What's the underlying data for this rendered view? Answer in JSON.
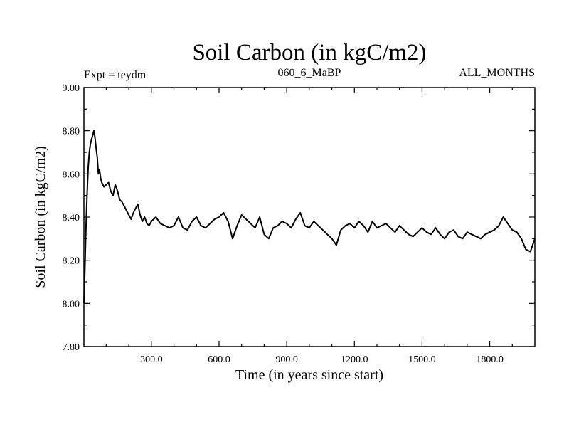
{
  "chart_data": {
    "type": "line",
    "title": "Soil Carbon (in kgC/m2)",
    "subtitle_left": "Expt = teydm",
    "subtitle_center": "060_6_MaBP",
    "subtitle_right": "ALL_MONTHS",
    "xlabel": "Time (in years since start)",
    "ylabel": "Soil Carbon (in kgC/m2)",
    "xlim": [
      1,
      2000
    ],
    "ylim": [
      7.8,
      9.0
    ],
    "x_ticks": [
      300,
      600,
      900,
      1200,
      1500,
      1800
    ],
    "x_tick_labels": [
      "300.0",
      "600.0",
      "900.0",
      "1200.0",
      "1500.0",
      "1800.0"
    ],
    "y_ticks": [
      7.8,
      8.0,
      8.2,
      8.4,
      8.6,
      8.8,
      9.0
    ],
    "y_tick_labels": [
      "7.80",
      "8.00",
      "8.20",
      "8.40",
      "8.60",
      "8.80",
      "9.00"
    ],
    "grid": false,
    "series": [
      {
        "name": "Soil Carbon",
        "color": "#000000",
        "x": [
          1,
          5,
          10,
          15,
          20,
          25,
          30,
          35,
          40,
          45,
          50,
          55,
          60,
          65,
          70,
          75,
          80,
          90,
          100,
          110,
          120,
          130,
          140,
          150,
          160,
          170,
          180,
          190,
          200,
          210,
          220,
          230,
          240,
          250,
          260,
          270,
          280,
          290,
          300,
          320,
          340,
          360,
          380,
          400,
          420,
          440,
          460,
          480,
          500,
          520,
          540,
          560,
          580,
          600,
          620,
          640,
          660,
          680,
          700,
          720,
          740,
          760,
          780,
          800,
          820,
          840,
          860,
          880,
          900,
          920,
          940,
          960,
          980,
          1000,
          1020,
          1040,
          1060,
          1080,
          1100,
          1120,
          1140,
          1160,
          1180,
          1200,
          1220,
          1240,
          1260,
          1280,
          1300,
          1320,
          1340,
          1360,
          1380,
          1400,
          1420,
          1440,
          1460,
          1480,
          1500,
          1520,
          1540,
          1560,
          1580,
          1600,
          1620,
          1640,
          1660,
          1680,
          1700,
          1720,
          1740,
          1760,
          1780,
          1800,
          1820,
          1840,
          1860,
          1880,
          1900,
          1920,
          1940,
          1960,
          1980,
          2000
        ],
        "y": [
          8.0,
          8.15,
          8.35,
          8.5,
          8.63,
          8.7,
          8.74,
          8.76,
          8.78,
          8.8,
          8.77,
          8.72,
          8.68,
          8.6,
          8.62,
          8.58,
          8.56,
          8.54,
          8.55,
          8.56,
          8.52,
          8.5,
          8.55,
          8.52,
          8.48,
          8.47,
          8.45,
          8.43,
          8.41,
          8.39,
          8.42,
          8.44,
          8.46,
          8.41,
          8.38,
          8.4,
          8.37,
          8.36,
          8.38,
          8.4,
          8.37,
          8.36,
          8.35,
          8.36,
          8.4,
          8.35,
          8.34,
          8.38,
          8.4,
          8.36,
          8.35,
          8.37,
          8.39,
          8.4,
          8.42,
          8.38,
          8.3,
          8.36,
          8.41,
          8.39,
          8.37,
          8.35,
          8.4,
          8.32,
          8.3,
          8.35,
          8.36,
          8.38,
          8.37,
          8.35,
          8.39,
          8.42,
          8.36,
          8.35,
          8.38,
          8.36,
          8.34,
          8.32,
          8.3,
          8.27,
          8.34,
          8.36,
          8.37,
          8.35,
          8.38,
          8.36,
          8.33,
          8.38,
          8.35,
          8.36,
          8.37,
          8.35,
          8.33,
          8.36,
          8.34,
          8.32,
          8.31,
          8.33,
          8.35,
          8.33,
          8.32,
          8.35,
          8.32,
          8.3,
          8.33,
          8.34,
          8.31,
          8.3,
          8.33,
          8.32,
          8.31,
          8.3,
          8.32,
          8.33,
          8.34,
          8.36,
          8.4,
          8.37,
          8.34,
          8.33,
          8.3,
          8.25,
          8.24,
          8.3
        ]
      }
    ]
  }
}
